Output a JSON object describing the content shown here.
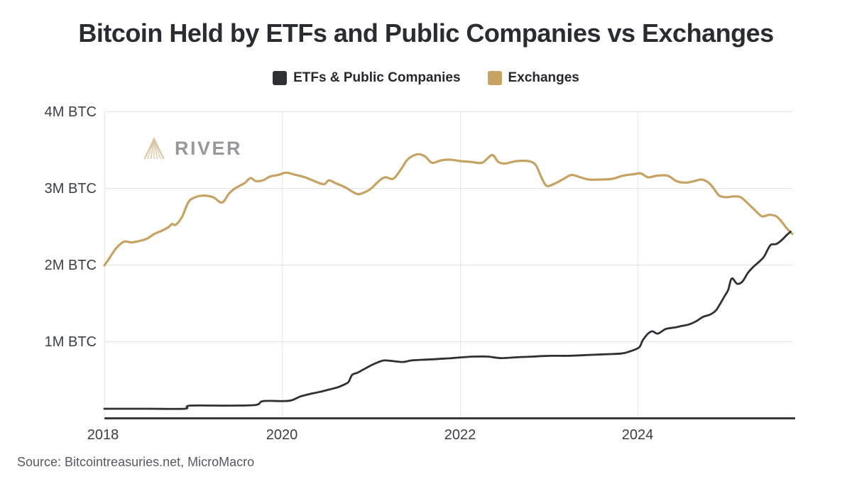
{
  "title": "Bitcoin Held by ETFs and Public Companies vs Exchanges",
  "legend": {
    "items": [
      {
        "label": "ETFs & Public Companies",
        "color": "#2e3034"
      },
      {
        "label": "Exchanges",
        "color": "#c6a263"
      }
    ]
  },
  "watermark": {
    "text": "RIVER",
    "icon": "river-fan-icon",
    "icon_color": "#dac7a5"
  },
  "source": "Source: Bitcointreasuries.net, MicroMacro",
  "chart_data": {
    "type": "line",
    "title": "Bitcoin Held by ETFs and Public Companies vs Exchanges",
    "legend_position": "top-center",
    "grid": true,
    "x_axis": {
      "range": [
        2018,
        2025.72
      ],
      "tick_values": [
        2018,
        2020,
        2022,
        2024
      ],
      "tick_labels": [
        "2018",
        "2020",
        "2022",
        "2024"
      ]
    },
    "y_axis": {
      "range": [
        0,
        4
      ],
      "unit": "M BTC",
      "tick_values": [
        1,
        2,
        3,
        4
      ],
      "tick_labels": [
        "1M BTC",
        "2M BTC",
        "3M BTC",
        "4M BTC"
      ]
    },
    "series": [
      {
        "name": "Exchanges",
        "color": "#c6a263",
        "stroke_width": 3.2,
        "points": [
          [
            2018.0,
            2.0
          ],
          [
            2018.06,
            2.1
          ],
          [
            2018.13,
            2.22
          ],
          [
            2018.22,
            2.31
          ],
          [
            2018.3,
            2.3
          ],
          [
            2018.4,
            2.32
          ],
          [
            2018.48,
            2.35
          ],
          [
            2018.56,
            2.41
          ],
          [
            2018.64,
            2.45
          ],
          [
            2018.72,
            2.5
          ],
          [
            2018.76,
            2.54
          ],
          [
            2018.8,
            2.53
          ],
          [
            2018.87,
            2.63
          ],
          [
            2018.94,
            2.82
          ],
          [
            2019.0,
            2.88
          ],
          [
            2019.1,
            2.91
          ],
          [
            2019.22,
            2.89
          ],
          [
            2019.32,
            2.82
          ],
          [
            2019.4,
            2.94
          ],
          [
            2019.46,
            3.0
          ],
          [
            2019.52,
            3.04
          ],
          [
            2019.58,
            3.08
          ],
          [
            2019.64,
            3.14
          ],
          [
            2019.7,
            3.1
          ],
          [
            2019.78,
            3.11
          ],
          [
            2019.86,
            3.16
          ],
          [
            2019.95,
            3.18
          ],
          [
            2020.04,
            3.21
          ],
          [
            2020.15,
            3.18
          ],
          [
            2020.25,
            3.15
          ],
          [
            2020.4,
            3.08
          ],
          [
            2020.47,
            3.06
          ],
          [
            2020.52,
            3.11
          ],
          [
            2020.6,
            3.07
          ],
          [
            2020.7,
            3.02
          ],
          [
            2020.8,
            2.95
          ],
          [
            2020.86,
            2.93
          ],
          [
            2020.95,
            2.97
          ],
          [
            2021.0,
            3.01
          ],
          [
            2021.08,
            3.1
          ],
          [
            2021.15,
            3.15
          ],
          [
            2021.24,
            3.13
          ],
          [
            2021.32,
            3.24
          ],
          [
            2021.4,
            3.38
          ],
          [
            2021.48,
            3.44
          ],
          [
            2021.54,
            3.45
          ],
          [
            2021.6,
            3.42
          ],
          [
            2021.66,
            3.35
          ],
          [
            2021.7,
            3.34
          ],
          [
            2021.78,
            3.37
          ],
          [
            2021.88,
            3.38
          ],
          [
            2022.0,
            3.36
          ],
          [
            2022.12,
            3.35
          ],
          [
            2022.24,
            3.34
          ],
          [
            2022.35,
            3.44
          ],
          [
            2022.42,
            3.35
          ],
          [
            2022.5,
            3.33
          ],
          [
            2022.62,
            3.36
          ],
          [
            2022.76,
            3.36
          ],
          [
            2022.84,
            3.31
          ],
          [
            2022.9,
            3.16
          ],
          [
            2022.96,
            3.04
          ],
          [
            2023.04,
            3.06
          ],
          [
            2023.14,
            3.12
          ],
          [
            2023.24,
            3.18
          ],
          [
            2023.34,
            3.15
          ],
          [
            2023.44,
            3.12
          ],
          [
            2023.58,
            3.12
          ],
          [
            2023.7,
            3.13
          ],
          [
            2023.82,
            3.17
          ],
          [
            2023.94,
            3.19
          ],
          [
            2024.02,
            3.2
          ],
          [
            2024.1,
            3.15
          ],
          [
            2024.2,
            3.17
          ],
          [
            2024.32,
            3.17
          ],
          [
            2024.42,
            3.1
          ],
          [
            2024.52,
            3.08
          ],
          [
            2024.62,
            3.1
          ],
          [
            2024.7,
            3.12
          ],
          [
            2024.78,
            3.08
          ],
          [
            2024.84,
            3.0
          ],
          [
            2024.9,
            2.91
          ],
          [
            2024.98,
            2.89
          ],
          [
            2025.06,
            2.9
          ],
          [
            2025.14,
            2.89
          ],
          [
            2025.22,
            2.81
          ],
          [
            2025.3,
            2.72
          ],
          [
            2025.38,
            2.64
          ],
          [
            2025.46,
            2.66
          ],
          [
            2025.54,
            2.64
          ],
          [
            2025.6,
            2.57
          ],
          [
            2025.66,
            2.48
          ],
          [
            2025.72,
            2.41
          ]
        ]
      },
      {
        "name": "ETFs & Public Companies",
        "color": "#2e3034",
        "stroke_width": 2.8,
        "points": [
          [
            2018.0,
            0.13
          ],
          [
            2018.5,
            0.13
          ],
          [
            2018.9,
            0.13
          ],
          [
            2018.96,
            0.17
          ],
          [
            2019.4,
            0.17
          ],
          [
            2019.7,
            0.18
          ],
          [
            2019.78,
            0.23
          ],
          [
            2020.0,
            0.23
          ],
          [
            2020.1,
            0.24
          ],
          [
            2020.2,
            0.29
          ],
          [
            2020.3,
            0.32
          ],
          [
            2020.42,
            0.35
          ],
          [
            2020.52,
            0.38
          ],
          [
            2020.62,
            0.41
          ],
          [
            2020.7,
            0.45
          ],
          [
            2020.74,
            0.48
          ],
          [
            2020.78,
            0.57
          ],
          [
            2020.84,
            0.6
          ],
          [
            2020.92,
            0.65
          ],
          [
            2021.0,
            0.7
          ],
          [
            2021.08,
            0.74
          ],
          [
            2021.14,
            0.76
          ],
          [
            2021.25,
            0.75
          ],
          [
            2021.35,
            0.74
          ],
          [
            2021.45,
            0.76
          ],
          [
            2021.6,
            0.77
          ],
          [
            2021.75,
            0.78
          ],
          [
            2021.9,
            0.79
          ],
          [
            2022.0,
            0.8
          ],
          [
            2022.15,
            0.81
          ],
          [
            2022.3,
            0.81
          ],
          [
            2022.45,
            0.79
          ],
          [
            2022.6,
            0.8
          ],
          [
            2022.8,
            0.81
          ],
          [
            2023.0,
            0.82
          ],
          [
            2023.2,
            0.82
          ],
          [
            2023.4,
            0.83
          ],
          [
            2023.6,
            0.84
          ],
          [
            2023.8,
            0.85
          ],
          [
            2023.9,
            0.88
          ],
          [
            2024.0,
            0.93
          ],
          [
            2024.04,
            1.02
          ],
          [
            2024.1,
            1.11
          ],
          [
            2024.15,
            1.14
          ],
          [
            2024.21,
            1.11
          ],
          [
            2024.3,
            1.17
          ],
          [
            2024.4,
            1.19
          ],
          [
            2024.48,
            1.21
          ],
          [
            2024.56,
            1.23
          ],
          [
            2024.64,
            1.27
          ],
          [
            2024.72,
            1.33
          ],
          [
            2024.8,
            1.36
          ],
          [
            2024.86,
            1.41
          ],
          [
            2024.9,
            1.48
          ],
          [
            2024.96,
            1.6
          ],
          [
            2025.0,
            1.68
          ],
          [
            2025.04,
            1.83
          ],
          [
            2025.1,
            1.76
          ],
          [
            2025.16,
            1.79
          ],
          [
            2025.22,
            1.9
          ],
          [
            2025.28,
            1.98
          ],
          [
            2025.34,
            2.04
          ],
          [
            2025.4,
            2.11
          ],
          [
            2025.44,
            2.2
          ],
          [
            2025.48,
            2.27
          ],
          [
            2025.54,
            2.28
          ],
          [
            2025.6,
            2.33
          ],
          [
            2025.66,
            2.4
          ],
          [
            2025.7,
            2.44
          ]
        ]
      }
    ]
  }
}
